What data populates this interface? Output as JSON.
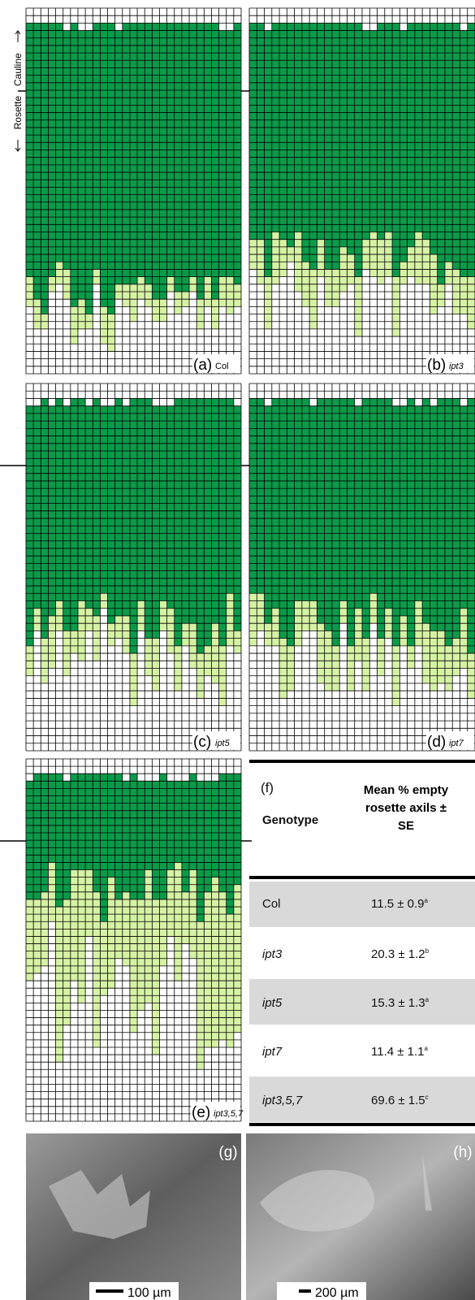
{
  "side_labels": {
    "rosette": "Rosette",
    "cauline": "Cauline"
  },
  "panels": [
    {
      "letter": "(a)",
      "name": "Col"
    },
    {
      "letter": "(b)",
      "name": "ipt3"
    },
    {
      "letter": "(c)",
      "name": "ipt5"
    },
    {
      "letter": "(d)",
      "name": "ipt7"
    },
    {
      "letter": "(e)",
      "name": "ipt3,5,7"
    }
  ],
  "table": {
    "label": "(f)",
    "header": [
      "Genotype",
      "Mean % empty rosette axils ± SE"
    ],
    "rows": [
      {
        "genotype": "Col",
        "value": "11.5 ± 0.9",
        "group": "a"
      },
      {
        "genotype": "ipt3",
        "value": "20.3 ± 1.2",
        "group": "b"
      },
      {
        "genotype": "ipt5",
        "value": "15.3 ± 1.3",
        "group": "a"
      },
      {
        "genotype": "ipt7",
        "value": "11.4 ± 1.1",
        "group": "a"
      },
      {
        "genotype": "ipt3,5,7",
        "value": "69.6 ± 1.5",
        "group": "c"
      }
    ]
  },
  "images": [
    {
      "letter": "(g)",
      "scale": "100 µm"
    },
    {
      "letter": "(h)",
      "scale": "200 µm"
    }
  ]
}
